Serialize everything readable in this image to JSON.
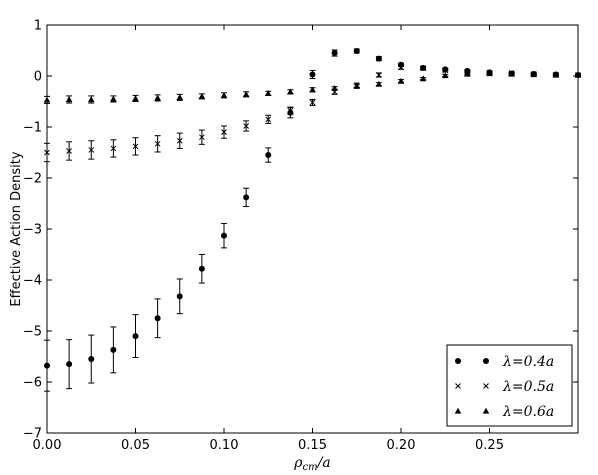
{
  "chart_data": {
    "type": "scatter",
    "xlabel": "ρcm/a",
    "xlabel_main": "ρ",
    "xlabel_sub": "cm",
    "xlabel_tail": "/a",
    "ylabel": "Effective Action Density",
    "xlim": [
      0.0,
      0.3
    ],
    "ylim": [
      -7,
      1
    ],
    "x_ticks": [
      0.0,
      0.05,
      0.1,
      0.15,
      0.2,
      0.25
    ],
    "x_tick_labels": [
      "0.00",
      "0.05",
      "0.10",
      "0.15",
      "0.20",
      "0.25"
    ],
    "y_ticks": [
      1,
      0,
      -1,
      -2,
      -3,
      -4,
      -5,
      -6,
      -7
    ],
    "y_tick_labels": [
      "1",
      "0",
      "−1",
      "−2",
      "−3",
      "−4",
      "−5",
      "−6",
      "−7"
    ],
    "grid": false,
    "legend_position": "bottom-right",
    "series": [
      {
        "name": "λ=0.4a",
        "marker": "circle",
        "x": [
          0.0,
          0.0125,
          0.025,
          0.0375,
          0.05,
          0.0625,
          0.075,
          0.0875,
          0.1,
          0.1125,
          0.125,
          0.1375,
          0.15,
          0.1625,
          0.175,
          0.1875,
          0.2,
          0.2125,
          0.225,
          0.2375,
          0.25,
          0.2625,
          0.275,
          0.2875,
          0.3
        ],
        "y": [
          -5.68,
          -5.65,
          -5.55,
          -5.37,
          -5.1,
          -4.75,
          -4.32,
          -3.78,
          -3.13,
          -2.38,
          -1.55,
          -0.72,
          0.03,
          0.45,
          0.49,
          0.34,
          0.22,
          0.16,
          0.13,
          0.1,
          0.07,
          0.05,
          0.04,
          0.03,
          0.02
        ],
        "err": [
          0.5,
          0.48,
          0.47,
          0.45,
          0.42,
          0.38,
          0.34,
          0.28,
          0.24,
          0.18,
          0.14,
          0.1,
          0.08,
          0.06,
          0.04,
          0.04,
          0.03,
          0.03,
          0.02,
          0.02,
          0.02,
          0.02,
          0.02,
          0.02,
          0.02
        ]
      },
      {
        "name": "λ=0.5a",
        "marker": "x",
        "x": [
          0.0,
          0.0125,
          0.025,
          0.0375,
          0.05,
          0.0625,
          0.075,
          0.0875,
          0.1,
          0.1125,
          0.125,
          0.1375,
          0.15,
          0.1625,
          0.175,
          0.1875,
          0.2,
          0.2125,
          0.225,
          0.2375,
          0.25,
          0.2625,
          0.275,
          0.2875,
          0.3
        ],
        "y": [
          -1.5,
          -1.47,
          -1.45,
          -1.42,
          -1.38,
          -1.33,
          -1.27,
          -1.2,
          -1.1,
          -0.98,
          -0.85,
          -0.68,
          -0.52,
          -0.31,
          -0.18,
          0.02,
          0.17,
          0.15,
          0.11,
          0.08,
          0.07,
          0.06,
          0.04,
          0.03,
          0.02
        ],
        "err": [
          0.18,
          0.18,
          0.18,
          0.17,
          0.17,
          0.16,
          0.15,
          0.14,
          0.12,
          0.1,
          0.08,
          0.07,
          0.06,
          0.05,
          0.04,
          0.04,
          0.04,
          0.03,
          0.03,
          0.02,
          0.02,
          0.02,
          0.02,
          0.02,
          0.02
        ]
      },
      {
        "name": "λ=0.6a",
        "marker": "triangle",
        "x": [
          0.0,
          0.0125,
          0.025,
          0.0375,
          0.05,
          0.0625,
          0.075,
          0.0875,
          0.1,
          0.1125,
          0.125,
          0.1375,
          0.15,
          0.1625,
          0.175,
          0.1875,
          0.2,
          0.2125,
          0.225,
          0.2375,
          0.25,
          0.2625,
          0.275,
          0.2875,
          0.3
        ],
        "y": [
          -0.47,
          -0.46,
          -0.46,
          -0.45,
          -0.44,
          -0.43,
          -0.42,
          -0.4,
          -0.38,
          -0.36,
          -0.34,
          -0.31,
          -0.27,
          -0.24,
          -0.2,
          -0.16,
          -0.1,
          -0.05,
          0.01,
          0.04,
          0.05,
          0.04,
          0.03,
          0.02,
          0.02
        ],
        "err": [
          0.07,
          0.07,
          0.07,
          0.06,
          0.06,
          0.06,
          0.06,
          0.05,
          0.05,
          0.05,
          0.04,
          0.04,
          0.04,
          0.03,
          0.03,
          0.03,
          0.03,
          0.02,
          0.02,
          0.02,
          0.02,
          0.02,
          0.02,
          0.02,
          0.02
        ]
      }
    ]
  }
}
